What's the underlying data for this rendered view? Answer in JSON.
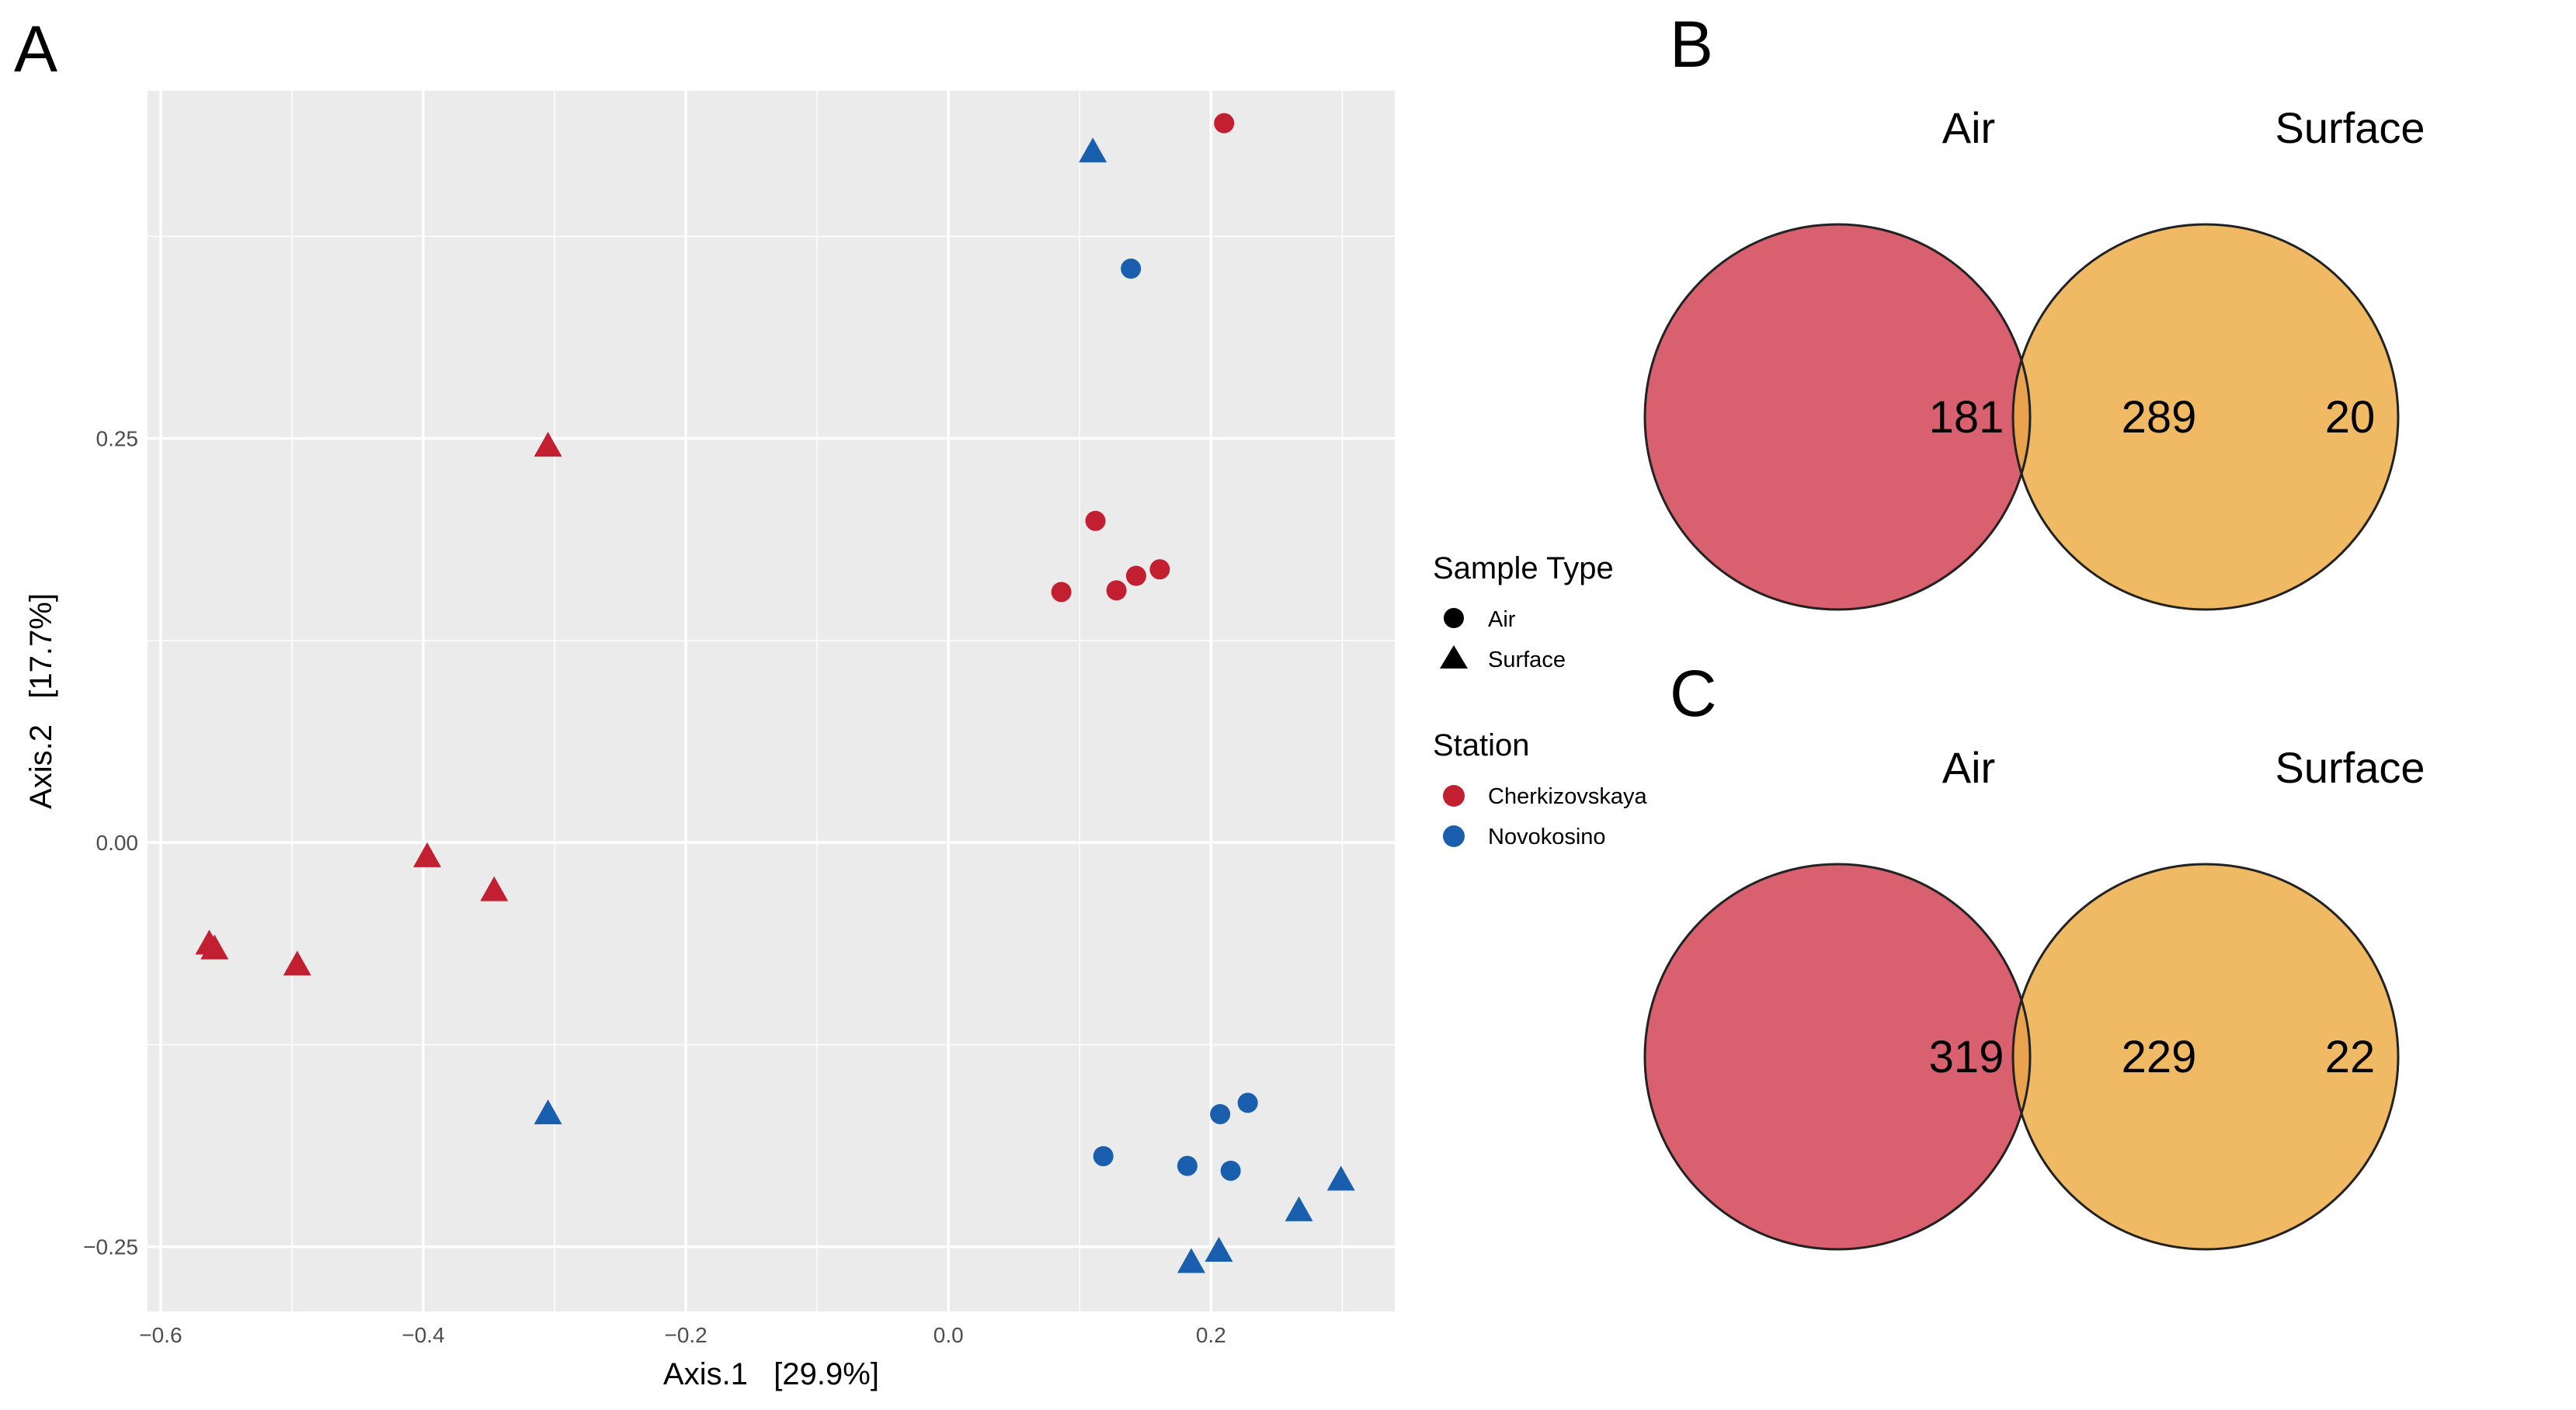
{
  "panel_labels": {
    "a": "A",
    "b": "B",
    "c": "C"
  },
  "colors": {
    "cherkizovskaya": "#C21F30",
    "novokosino": "#1A5FAD",
    "panel_bg": "#EBEBEB",
    "grid": "#FFFFFF",
    "air_circle": "#D8606F",
    "surface_circle": "#F0B963",
    "overlap": "#E9A24E"
  },
  "chart_data": [
    {
      "type": "scatter",
      "title": "",
      "xlabel": "Axis.1   [29.9%]",
      "ylabel": "Axis.2   [17.7%]",
      "xlim": [
        -0.61,
        0.34
      ],
      "ylim": [
        -0.29,
        0.465
      ],
      "xticks": [
        -0.6,
        -0.4,
        -0.2,
        0.0,
        0.2
      ],
      "xtick_labels": [
        "−0.6",
        "−0.4",
        "−0.2",
        "0.0",
        "0.2"
      ],
      "yticks": [
        -0.25,
        0.0,
        0.25
      ],
      "ytick_labels": [
        "−0.25",
        "0.00",
        "0.25"
      ],
      "grid": true,
      "legend": {
        "shape_title": "Sample Type",
        "shape_entries": [
          {
            "label": "Air",
            "shape": "circle"
          },
          {
            "label": "Surface",
            "shape": "triangle"
          }
        ],
        "color_title": "Station",
        "color_entries": [
          {
            "label": "Cherkizovskaya",
            "color": "#C21F30"
          },
          {
            "label": "Novokosino",
            "color": "#1A5FAD"
          }
        ],
        "position": "right"
      },
      "series": [
        {
          "name": "Cherkizovskaya Air",
          "station": "Cherkizovskaya",
          "sample_type": "Air",
          "shape": "circle",
          "color": "#C21F30",
          "points": [
            {
              "x": 0.21,
              "y": 0.445
            },
            {
              "x": 0.112,
              "y": 0.199
            },
            {
              "x": 0.086,
              "y": 0.155
            },
            {
              "x": 0.128,
              "y": 0.156
            },
            {
              "x": 0.143,
              "y": 0.165
            },
            {
              "x": 0.161,
              "y": 0.169
            }
          ]
        },
        {
          "name": "Cherkizovskaya Surface",
          "station": "Cherkizovskaya",
          "sample_type": "Surface",
          "shape": "triangle",
          "color": "#C21F30",
          "points": [
            {
              "x": -0.305,
              "y": 0.245
            },
            {
              "x": -0.397,
              "y": -0.009
            },
            {
              "x": -0.346,
              "y": -0.03
            },
            {
              "x": -0.563,
              "y": -0.063
            },
            {
              "x": -0.559,
              "y": -0.066
            },
            {
              "x": -0.496,
              "y": -0.076
            }
          ]
        },
        {
          "name": "Novokosino Air",
          "station": "Novokosino",
          "sample_type": "Air",
          "shape": "circle",
          "color": "#1A5FAD",
          "points": [
            {
              "x": 0.139,
              "y": 0.355
            },
            {
              "x": 0.228,
              "y": -0.161
            },
            {
              "x": 0.207,
              "y": -0.168
            },
            {
              "x": 0.118,
              "y": -0.194
            },
            {
              "x": 0.182,
              "y": -0.2
            },
            {
              "x": 0.215,
              "y": -0.203
            }
          ]
        },
        {
          "name": "Novokosino Surface",
          "station": "Novokosino",
          "sample_type": "Surface",
          "shape": "triangle",
          "color": "#1A5FAD",
          "points": [
            {
              "x": 0.11,
              "y": 0.427
            },
            {
              "x": -0.305,
              "y": -0.168
            },
            {
              "x": 0.299,
              "y": -0.209
            },
            {
              "x": 0.267,
              "y": -0.228
            },
            {
              "x": 0.206,
              "y": -0.253
            },
            {
              "x": 0.185,
              "y": -0.26
            }
          ]
        }
      ]
    },
    {
      "type": "venn",
      "panel": "B",
      "sets": [
        "Air",
        "Surface"
      ],
      "values": {
        "Air_only": 181,
        "both": 289,
        "Surface_only": 20
      }
    },
    {
      "type": "venn",
      "panel": "C",
      "sets": [
        "Air",
        "Surface"
      ],
      "values": {
        "Air_only": 319,
        "both": 229,
        "Surface_only": 22
      }
    }
  ]
}
